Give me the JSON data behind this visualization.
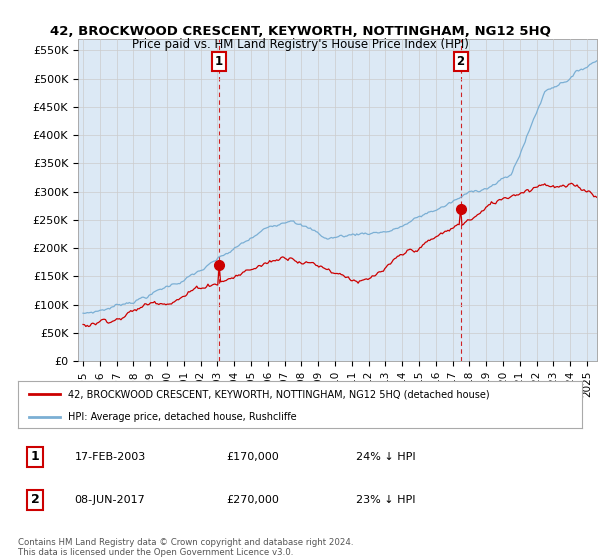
{
  "title": "42, BROCKWOOD CRESCENT, KEYWORTH, NOTTINGHAM, NG12 5HQ",
  "subtitle": "Price paid vs. HM Land Registry's House Price Index (HPI)",
  "ylabel_ticks": [
    "£0",
    "£50K",
    "£100K",
    "£150K",
    "£200K",
    "£250K",
    "£300K",
    "£350K",
    "£400K",
    "£450K",
    "£500K",
    "£550K"
  ],
  "ytick_values": [
    0,
    50000,
    100000,
    150000,
    200000,
    250000,
    300000,
    350000,
    400000,
    450000,
    500000,
    550000
  ],
  "ylim": [
    0,
    570000
  ],
  "hpi_color": "#7bafd4",
  "hpi_fill_color": "#dce9f5",
  "price_color": "#cc0000",
  "transaction1_date": "17-FEB-2003",
  "transaction1_price": 170000,
  "transaction1_pct": "24% ↓ HPI",
  "transaction2_date": "08-JUN-2017",
  "transaction2_price": 270000,
  "transaction2_pct": "23% ↓ HPI",
  "legend_house": "42, BROCKWOOD CRESCENT, KEYWORTH, NOTTINGHAM, NG12 5HQ (detached house)",
  "legend_hpi": "HPI: Average price, detached house, Rushcliffe",
  "footnote": "Contains HM Land Registry data © Crown copyright and database right 2024.\nThis data is licensed under the Open Government Licence v3.0.",
  "background_color": "#ffffff",
  "grid_color": "#cccccc"
}
